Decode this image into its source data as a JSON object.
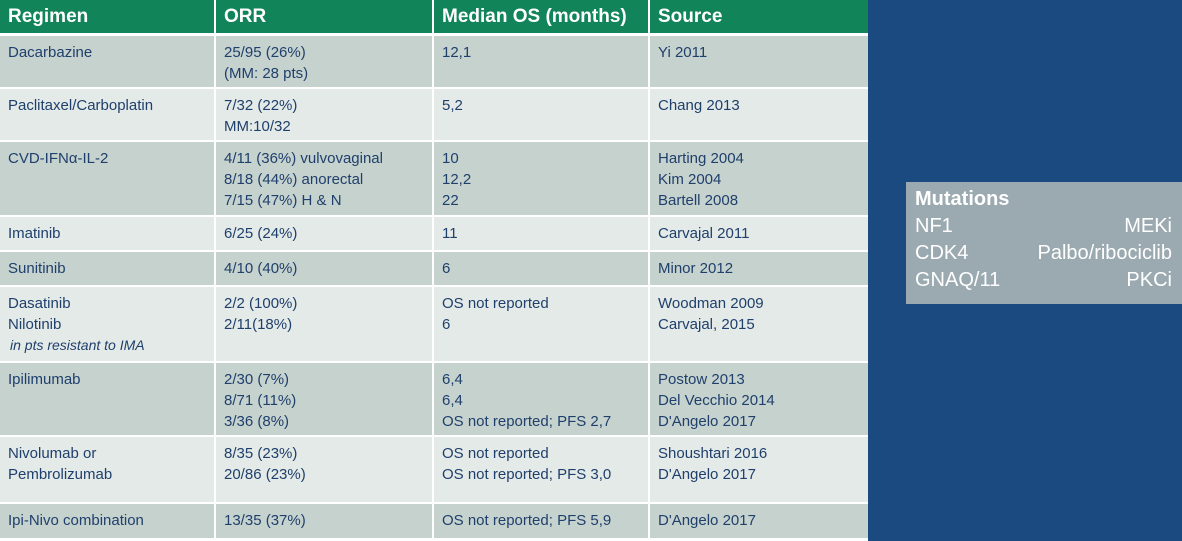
{
  "table": {
    "headers": [
      "Regimen",
      "ORR",
      "Median OS (months)",
      "Source"
    ],
    "rows": [
      {
        "regimen": [
          "Dacarbazine"
        ],
        "orr": [
          "25/95 (26%)",
          "(MM: 28 pts)"
        ],
        "os": [
          "12,1"
        ],
        "source": [
          "Yi 2011"
        ]
      },
      {
        "regimen": [
          "Paclitaxel/Carboplatin"
        ],
        "orr": [
          "7/32 (22%)",
          "MM:10/32"
        ],
        "os": [
          "5,2"
        ],
        "source": [
          "Chang 2013"
        ]
      },
      {
        "regimen": [
          "CVD-IFNα-IL-2"
        ],
        "orr": [
          "4/11 (36%) vulvovaginal",
          "8/18 (44%) anorectal",
          "7/15 (47%) H & N"
        ],
        "os": [
          "10",
          "12,2",
          "22"
        ],
        "source": [
          "Harting 2004",
          "Kim 2004",
          "Bartell 2008"
        ]
      },
      {
        "regimen": [
          "Imatinib"
        ],
        "orr": [
          "6/25 (24%)"
        ],
        "os": [
          "11"
        ],
        "source": [
          "Carvajal  2011"
        ]
      },
      {
        "regimen": [
          "Sunitinib"
        ],
        "orr": [
          "4/10 (40%)"
        ],
        "os": [
          "6"
        ],
        "source": [
          "Minor 2012"
        ]
      },
      {
        "regimen": [
          "Dasatinib",
          "Nilotinib"
        ],
        "regimen_note": "in pts resistant to IMA",
        "orr": [
          "2/2 (100%)",
          "2/11(18%)"
        ],
        "os": [
          "OS not reported",
          "6"
        ],
        "source": [
          "Woodman 2009",
          "Carvajal, 2015"
        ]
      },
      {
        "regimen": [
          "Ipilimumab"
        ],
        "orr": [
          "2/30 (7%)",
          "8/71 (11%)",
          "3/36 (8%)"
        ],
        "os": [
          "6,4",
          "6,4",
          "OS not reported;  PFS 2,7"
        ],
        "source": [
          "Postow 2013",
          "Del Vecchio 2014",
          "D'Angelo 2017"
        ]
      },
      {
        "regimen": [
          "Nivolumab or",
          "Pembrolizumab"
        ],
        "orr": [
          "8/35 (23%)",
          "20/86 (23%)"
        ],
        "os": [
          "OS not reported",
          "OS not reported;  PFS 3,0"
        ],
        "source": [
          "Shoushtari 2016",
          "D'Angelo 2017"
        ]
      },
      {
        "regimen": [
          "Ipi-Nivo combination"
        ],
        "orr": [
          "13/35 (37%)"
        ],
        "os": [
          "OS not reported; PFS  5,9"
        ],
        "source": [
          "D'Angelo 2017"
        ]
      }
    ]
  },
  "mutations": {
    "title": "Mutations",
    "items": [
      {
        "gene": "NF1",
        "drug": "MEKi"
      },
      {
        "gene": "CDK4",
        "drug": "Palbo/ribociclib"
      },
      {
        "gene": "GNAQ/11",
        "drug": "PKCi"
      }
    ]
  },
  "colors": {
    "header_bg": "#12845a",
    "row_dark": "#c6d2cd",
    "row_light": "#e4eae7",
    "text": "#1f3f6c",
    "side_bg": "#1b4a80",
    "box_bg": "#9aaab0"
  }
}
